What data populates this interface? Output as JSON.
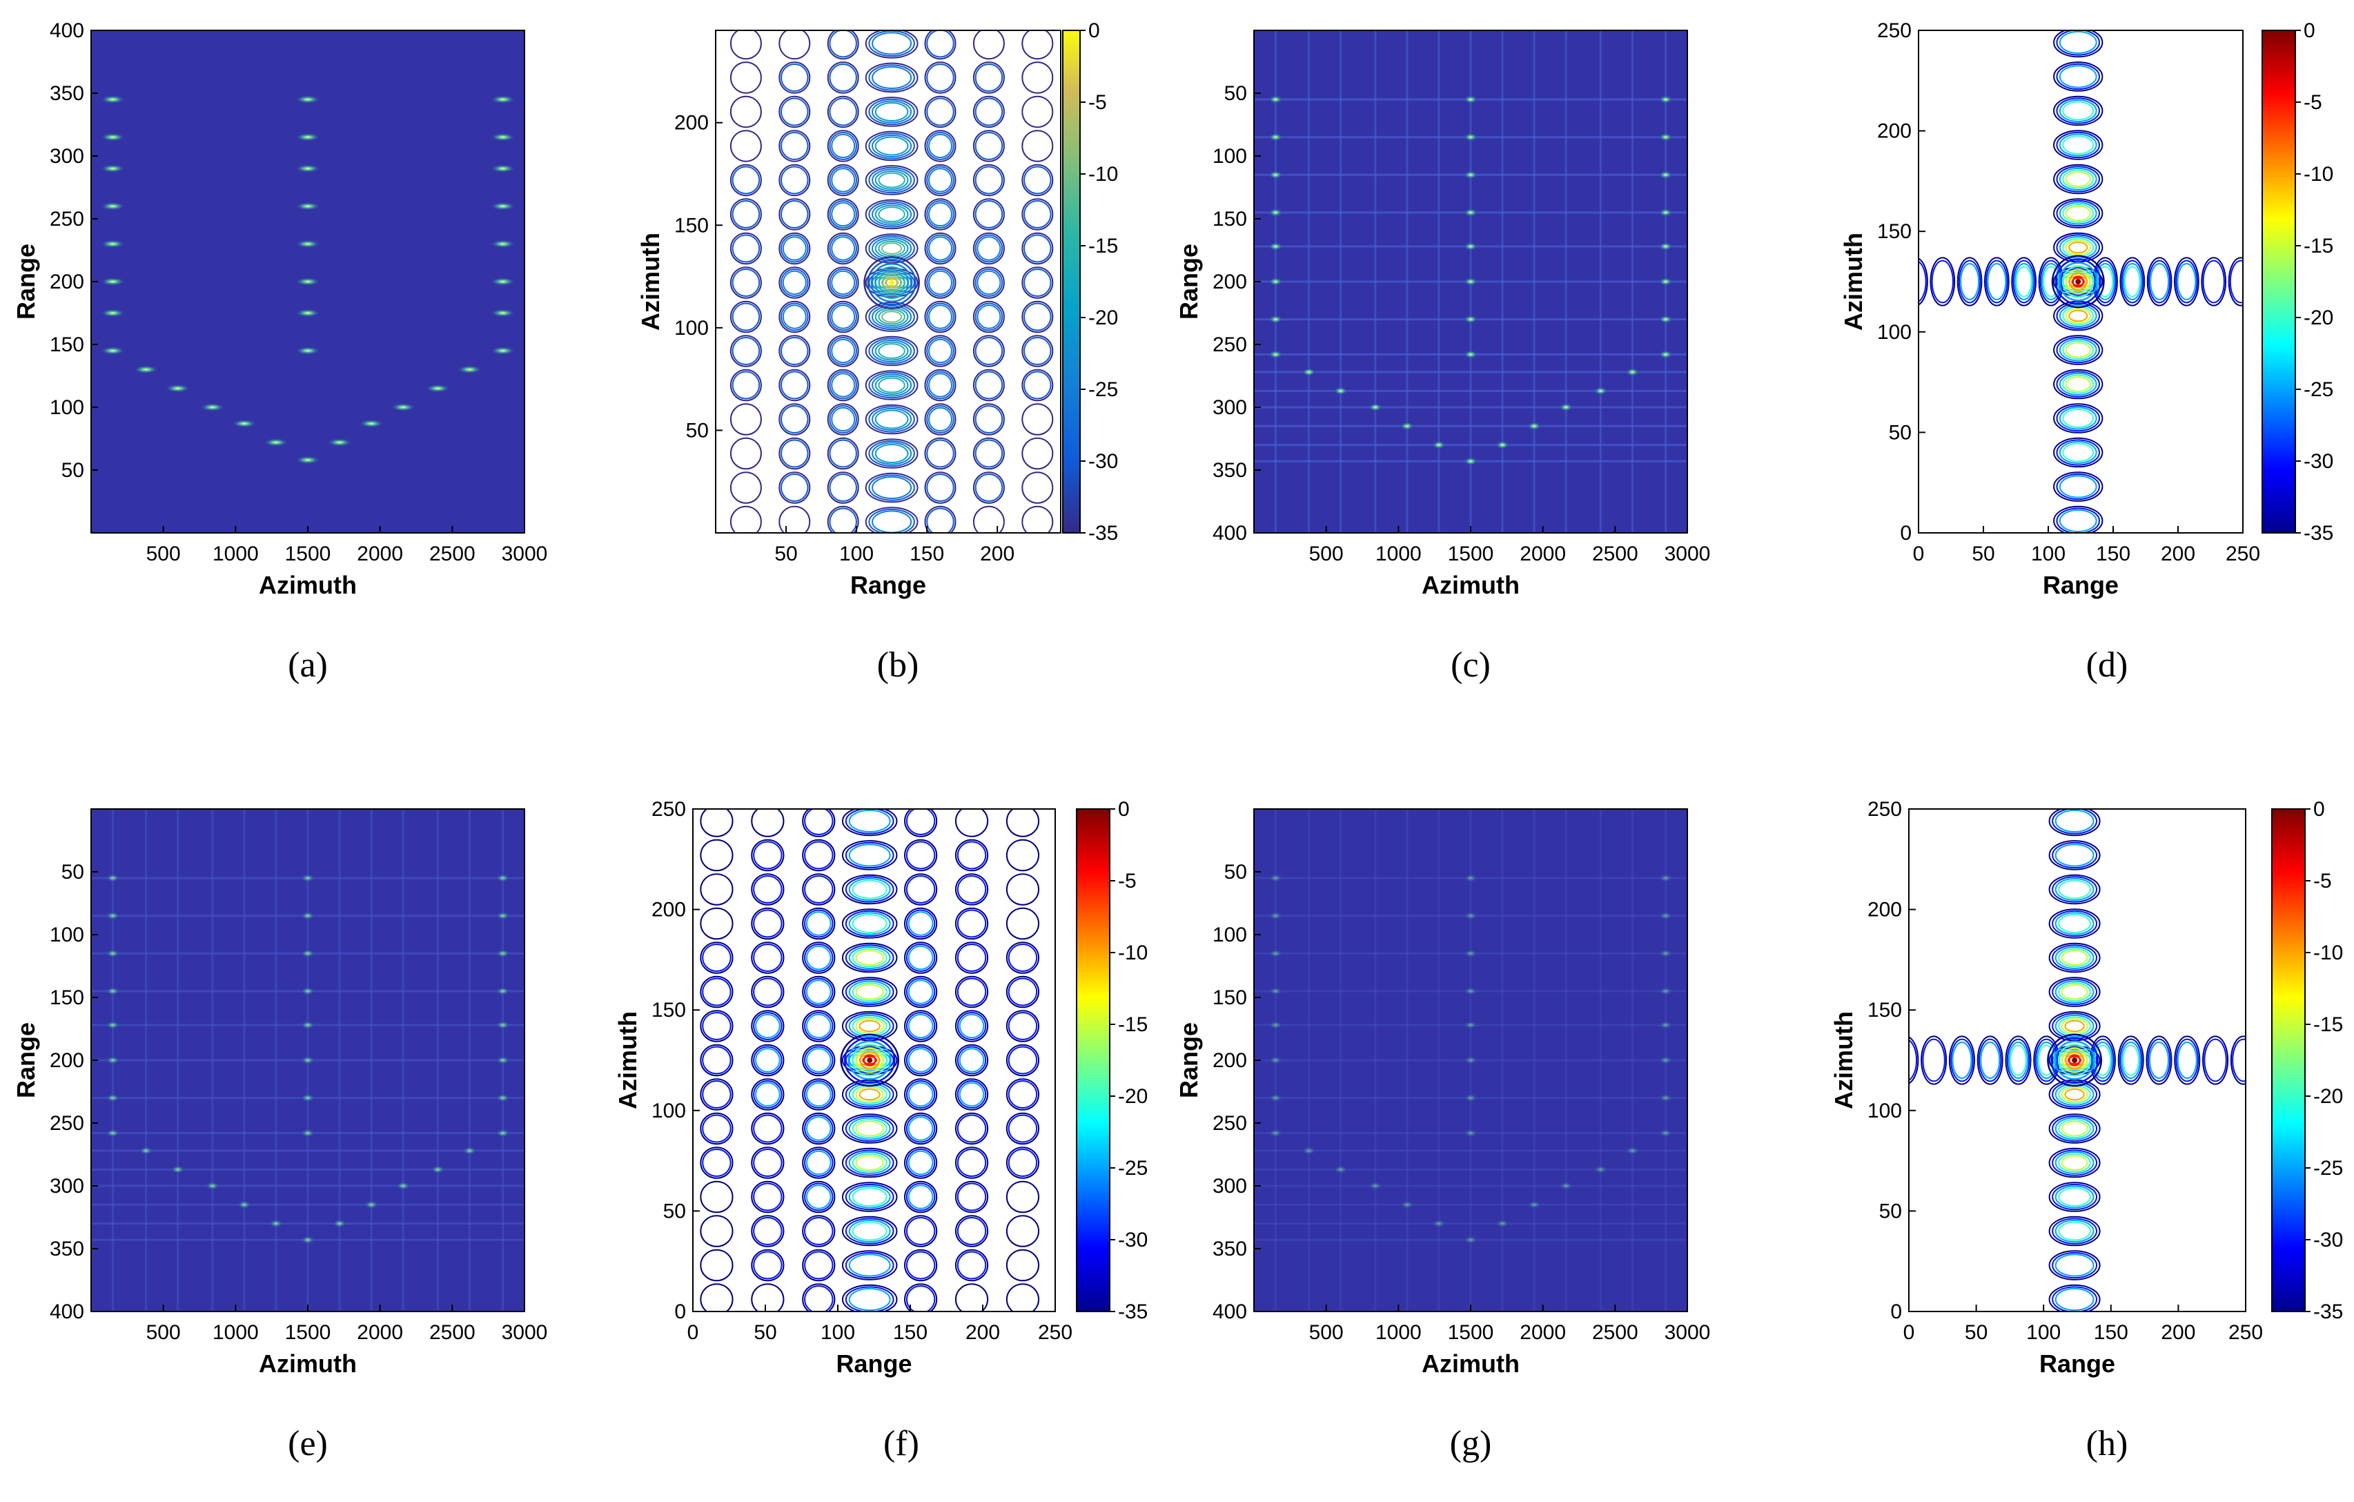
{
  "figure": {
    "panel_count": 8,
    "colors": {
      "image_background": "#3433a6",
      "frame": "#000000",
      "jet_low": "#00008f",
      "jet_high": "#800000"
    }
  },
  "chart_data": [
    {
      "id": "a",
      "panel_label": "(a)",
      "type": "heatmap",
      "title": "",
      "xlabel": "Azimuth",
      "ylabel": "Range",
      "xlim": [
        0,
        3000
      ],
      "ylim": [
        0,
        400
      ],
      "y_reversed": false,
      "xticks": [
        "500",
        "1000",
        "1500",
        "2000",
        "2500",
        "3000"
      ],
      "yticks": [
        "50",
        "100",
        "150",
        "200",
        "250",
        "300",
        "350",
        "400"
      ],
      "points": [
        {
          "x": 150,
          "y": 145
        },
        {
          "x": 150,
          "y": 175
        },
        {
          "x": 150,
          "y": 200
        },
        {
          "x": 150,
          "y": 230
        },
        {
          "x": 150,
          "y": 260
        },
        {
          "x": 150,
          "y": 290
        },
        {
          "x": 150,
          "y": 315
        },
        {
          "x": 150,
          "y": 345
        },
        {
          "x": 1500,
          "y": 145
        },
        {
          "x": 1500,
          "y": 175
        },
        {
          "x": 1500,
          "y": 200
        },
        {
          "x": 1500,
          "y": 230
        },
        {
          "x": 1500,
          "y": 260
        },
        {
          "x": 1500,
          "y": 290
        },
        {
          "x": 1500,
          "y": 315
        },
        {
          "x": 1500,
          "y": 345
        },
        {
          "x": 2850,
          "y": 145
        },
        {
          "x": 2850,
          "y": 175
        },
        {
          "x": 2850,
          "y": 200
        },
        {
          "x": 2850,
          "y": 230
        },
        {
          "x": 2850,
          "y": 260
        },
        {
          "x": 2850,
          "y": 290
        },
        {
          "x": 2850,
          "y": 315
        },
        {
          "x": 2850,
          "y": 345
        },
        {
          "x": 380,
          "y": 130
        },
        {
          "x": 600,
          "y": 115
        },
        {
          "x": 840,
          "y": 100
        },
        {
          "x": 1060,
          "y": 87
        },
        {
          "x": 1280,
          "y": 72
        },
        {
          "x": 1500,
          "y": 58
        },
        {
          "x": 1720,
          "y": 72
        },
        {
          "x": 1940,
          "y": 87
        },
        {
          "x": 2160,
          "y": 100
        },
        {
          "x": 2400,
          "y": 115
        },
        {
          "x": 2620,
          "y": 130
        }
      ]
    },
    {
      "id": "b",
      "panel_label": "(b)",
      "type": "contour",
      "title": "",
      "xlabel": "Range",
      "ylabel": "Azimuth",
      "xlim": [
        0,
        245
      ],
      "ylim": [
        0,
        245
      ],
      "xticks": [
        "50",
        "100",
        "150",
        "200"
      ],
      "yticks": [
        "50",
        "100",
        "150",
        "200"
      ],
      "colorbar": {
        "min": -35,
        "max": 0,
        "ticks": [
          "0",
          "-5",
          "-10",
          "-15",
          "-20",
          "-25",
          "-30",
          "-35"
        ],
        "colormap": "parula"
      },
      "peak": {
        "x": 125,
        "y": 122
      },
      "contour_levels_db": [
        -35,
        -30,
        -25,
        -20,
        -15,
        -10,
        -5
      ]
    },
    {
      "id": "c",
      "panel_label": "(c)",
      "type": "heatmap",
      "title": "",
      "xlabel": "Azimuth",
      "ylabel": "Range",
      "xlim": [
        0,
        3000
      ],
      "ylim": [
        0,
        400
      ],
      "y_reversed": true,
      "xticks": [
        "500",
        "1000",
        "1500",
        "2000",
        "2500",
        "3000"
      ],
      "yticks": [
        "50",
        "100",
        "150",
        "200",
        "250",
        "300",
        "350",
        "400"
      ],
      "points": [
        {
          "x": 150,
          "y": 55
        },
        {
          "x": 150,
          "y": 85
        },
        {
          "x": 150,
          "y": 115
        },
        {
          "x": 150,
          "y": 145
        },
        {
          "x": 150,
          "y": 172
        },
        {
          "x": 150,
          "y": 200
        },
        {
          "x": 150,
          "y": 230
        },
        {
          "x": 150,
          "y": 258
        },
        {
          "x": 1500,
          "y": 55
        },
        {
          "x": 1500,
          "y": 85
        },
        {
          "x": 1500,
          "y": 115
        },
        {
          "x": 1500,
          "y": 145
        },
        {
          "x": 1500,
          "y": 172
        },
        {
          "x": 1500,
          "y": 200
        },
        {
          "x": 1500,
          "y": 230
        },
        {
          "x": 1500,
          "y": 258
        },
        {
          "x": 2850,
          "y": 55
        },
        {
          "x": 2850,
          "y": 85
        },
        {
          "x": 2850,
          "y": 115
        },
        {
          "x": 2850,
          "y": 145
        },
        {
          "x": 2850,
          "y": 172
        },
        {
          "x": 2850,
          "y": 200
        },
        {
          "x": 2850,
          "y": 230
        },
        {
          "x": 2850,
          "y": 258
        },
        {
          "x": 380,
          "y": 272
        },
        {
          "x": 600,
          "y": 287
        },
        {
          "x": 840,
          "y": 300
        },
        {
          "x": 1060,
          "y": 315
        },
        {
          "x": 1280,
          "y": 330
        },
        {
          "x": 1500,
          "y": 343
        },
        {
          "x": 1720,
          "y": 330
        },
        {
          "x": 1940,
          "y": 315
        },
        {
          "x": 2160,
          "y": 300
        },
        {
          "x": 2400,
          "y": 287
        },
        {
          "x": 2620,
          "y": 272
        }
      ]
    },
    {
      "id": "d",
      "panel_label": "(d)",
      "type": "contour",
      "title": "",
      "xlabel": "Range",
      "ylabel": "Azimuth",
      "xlim": [
        0,
        250
      ],
      "ylim": [
        0,
        250
      ],
      "xticks": [
        "0",
        "50",
        "100",
        "150",
        "200",
        "250"
      ],
      "yticks": [
        "0",
        "50",
        "100",
        "150",
        "200",
        "250"
      ],
      "colorbar": {
        "min": -35,
        "max": 0,
        "ticks": [
          "0",
          "-5",
          "-10",
          "-15",
          "-20",
          "-25",
          "-30",
          "-35"
        ],
        "colormap": "jet"
      },
      "peak": {
        "x": 123,
        "y": 125
      },
      "contour_levels_db": [
        -35,
        -30,
        -25,
        -20,
        -15,
        -10,
        -5
      ]
    },
    {
      "id": "e",
      "panel_label": "(e)",
      "type": "heatmap",
      "title": "",
      "xlabel": "Azimuth",
      "ylabel": "Range",
      "xlim": [
        0,
        3000
      ],
      "ylim": [
        0,
        400
      ],
      "y_reversed": true,
      "xticks": [
        "500",
        "1000",
        "1500",
        "2000",
        "2500",
        "3000"
      ],
      "yticks": [
        "50",
        "100",
        "150",
        "200",
        "250",
        "300",
        "350",
        "400"
      ],
      "points": [
        {
          "x": 150,
          "y": 55
        },
        {
          "x": 150,
          "y": 85
        },
        {
          "x": 150,
          "y": 115
        },
        {
          "x": 150,
          "y": 145
        },
        {
          "x": 150,
          "y": 172
        },
        {
          "x": 150,
          "y": 200
        },
        {
          "x": 150,
          "y": 230
        },
        {
          "x": 150,
          "y": 258
        },
        {
          "x": 1500,
          "y": 55
        },
        {
          "x": 1500,
          "y": 85
        },
        {
          "x": 1500,
          "y": 115
        },
        {
          "x": 1500,
          "y": 145
        },
        {
          "x": 1500,
          "y": 172
        },
        {
          "x": 1500,
          "y": 200
        },
        {
          "x": 1500,
          "y": 230
        },
        {
          "x": 1500,
          "y": 258
        },
        {
          "x": 2850,
          "y": 55
        },
        {
          "x": 2850,
          "y": 85
        },
        {
          "x": 2850,
          "y": 115
        },
        {
          "x": 2850,
          "y": 145
        },
        {
          "x": 2850,
          "y": 172
        },
        {
          "x": 2850,
          "y": 200
        },
        {
          "x": 2850,
          "y": 230
        },
        {
          "x": 2850,
          "y": 258
        },
        {
          "x": 380,
          "y": 272
        },
        {
          "x": 600,
          "y": 287
        },
        {
          "x": 840,
          "y": 300
        },
        {
          "x": 1060,
          "y": 315
        },
        {
          "x": 1280,
          "y": 330
        },
        {
          "x": 1500,
          "y": 343
        },
        {
          "x": 1720,
          "y": 330
        },
        {
          "x": 1940,
          "y": 315
        },
        {
          "x": 2160,
          "y": 300
        },
        {
          "x": 2400,
          "y": 287
        },
        {
          "x": 2620,
          "y": 272
        }
      ]
    },
    {
      "id": "f",
      "panel_label": "(f)",
      "type": "contour",
      "title": "",
      "xlabel": "Range",
      "ylabel": "Azimuth",
      "xlim": [
        0,
        250
      ],
      "ylim": [
        0,
        250
      ],
      "xticks": [
        "0",
        "50",
        "100",
        "150",
        "200",
        "250"
      ],
      "yticks": [
        "0",
        "50",
        "100",
        "150",
        "200",
        "250"
      ],
      "colorbar": {
        "min": -35,
        "max": 0,
        "ticks": [
          "0",
          "-5",
          "-10",
          "-15",
          "-20",
          "-25",
          "-30",
          "-35"
        ],
        "colormap": "jet"
      },
      "peak": {
        "x": 122,
        "y": 125
      },
      "contour_levels_db": [
        -35,
        -30,
        -25,
        -20,
        -15,
        -10,
        -5
      ]
    },
    {
      "id": "g",
      "panel_label": "(g)",
      "type": "heatmap",
      "title": "",
      "xlabel": "Azimuth",
      "ylabel": "Range",
      "xlim": [
        0,
        3000
      ],
      "ylim": [
        0,
        400
      ],
      "y_reversed": true,
      "xticks": [
        "500",
        "1000",
        "1500",
        "2000",
        "2500",
        "3000"
      ],
      "yticks": [
        "50",
        "100",
        "150",
        "200",
        "250",
        "300",
        "350",
        "400"
      ],
      "points": [
        {
          "x": 150,
          "y": 55
        },
        {
          "x": 150,
          "y": 85
        },
        {
          "x": 150,
          "y": 115
        },
        {
          "x": 150,
          "y": 145
        },
        {
          "x": 150,
          "y": 172
        },
        {
          "x": 150,
          "y": 200
        },
        {
          "x": 150,
          "y": 230
        },
        {
          "x": 150,
          "y": 258
        },
        {
          "x": 1500,
          "y": 55
        },
        {
          "x": 1500,
          "y": 85
        },
        {
          "x": 1500,
          "y": 115
        },
        {
          "x": 1500,
          "y": 145
        },
        {
          "x": 1500,
          "y": 172
        },
        {
          "x": 1500,
          "y": 200
        },
        {
          "x": 1500,
          "y": 230
        },
        {
          "x": 1500,
          "y": 258
        },
        {
          "x": 2850,
          "y": 55
        },
        {
          "x": 2850,
          "y": 85
        },
        {
          "x": 2850,
          "y": 115
        },
        {
          "x": 2850,
          "y": 145
        },
        {
          "x": 2850,
          "y": 172
        },
        {
          "x": 2850,
          "y": 200
        },
        {
          "x": 2850,
          "y": 230
        },
        {
          "x": 2850,
          "y": 258
        },
        {
          "x": 380,
          "y": 272
        },
        {
          "x": 600,
          "y": 287
        },
        {
          "x": 840,
          "y": 300
        },
        {
          "x": 1060,
          "y": 315
        },
        {
          "x": 1280,
          "y": 330
        },
        {
          "x": 1500,
          "y": 343
        },
        {
          "x": 1720,
          "y": 330
        },
        {
          "x": 1940,
          "y": 315
        },
        {
          "x": 2160,
          "y": 300
        },
        {
          "x": 2400,
          "y": 287
        },
        {
          "x": 2620,
          "y": 272
        }
      ]
    },
    {
      "id": "h",
      "panel_label": "(h)",
      "type": "contour",
      "title": "",
      "xlabel": "Range",
      "ylabel": "Azimuth",
      "xlim": [
        0,
        250
      ],
      "ylim": [
        0,
        250
      ],
      "xticks": [
        "0",
        "50",
        "100",
        "150",
        "200",
        "250"
      ],
      "yticks": [
        "0",
        "50",
        "100",
        "150",
        "200",
        "250"
      ],
      "colorbar": {
        "min": -35,
        "max": 0,
        "ticks": [
          "0",
          "-5",
          "-10",
          "-15",
          "-20",
          "-25",
          "-30",
          "-35"
        ],
        "colormap": "jet"
      },
      "peak": {
        "x": 123,
        "y": 125
      },
      "contour_levels_db": [
        -35,
        -30,
        -25,
        -20,
        -15,
        -10,
        -5
      ]
    }
  ]
}
